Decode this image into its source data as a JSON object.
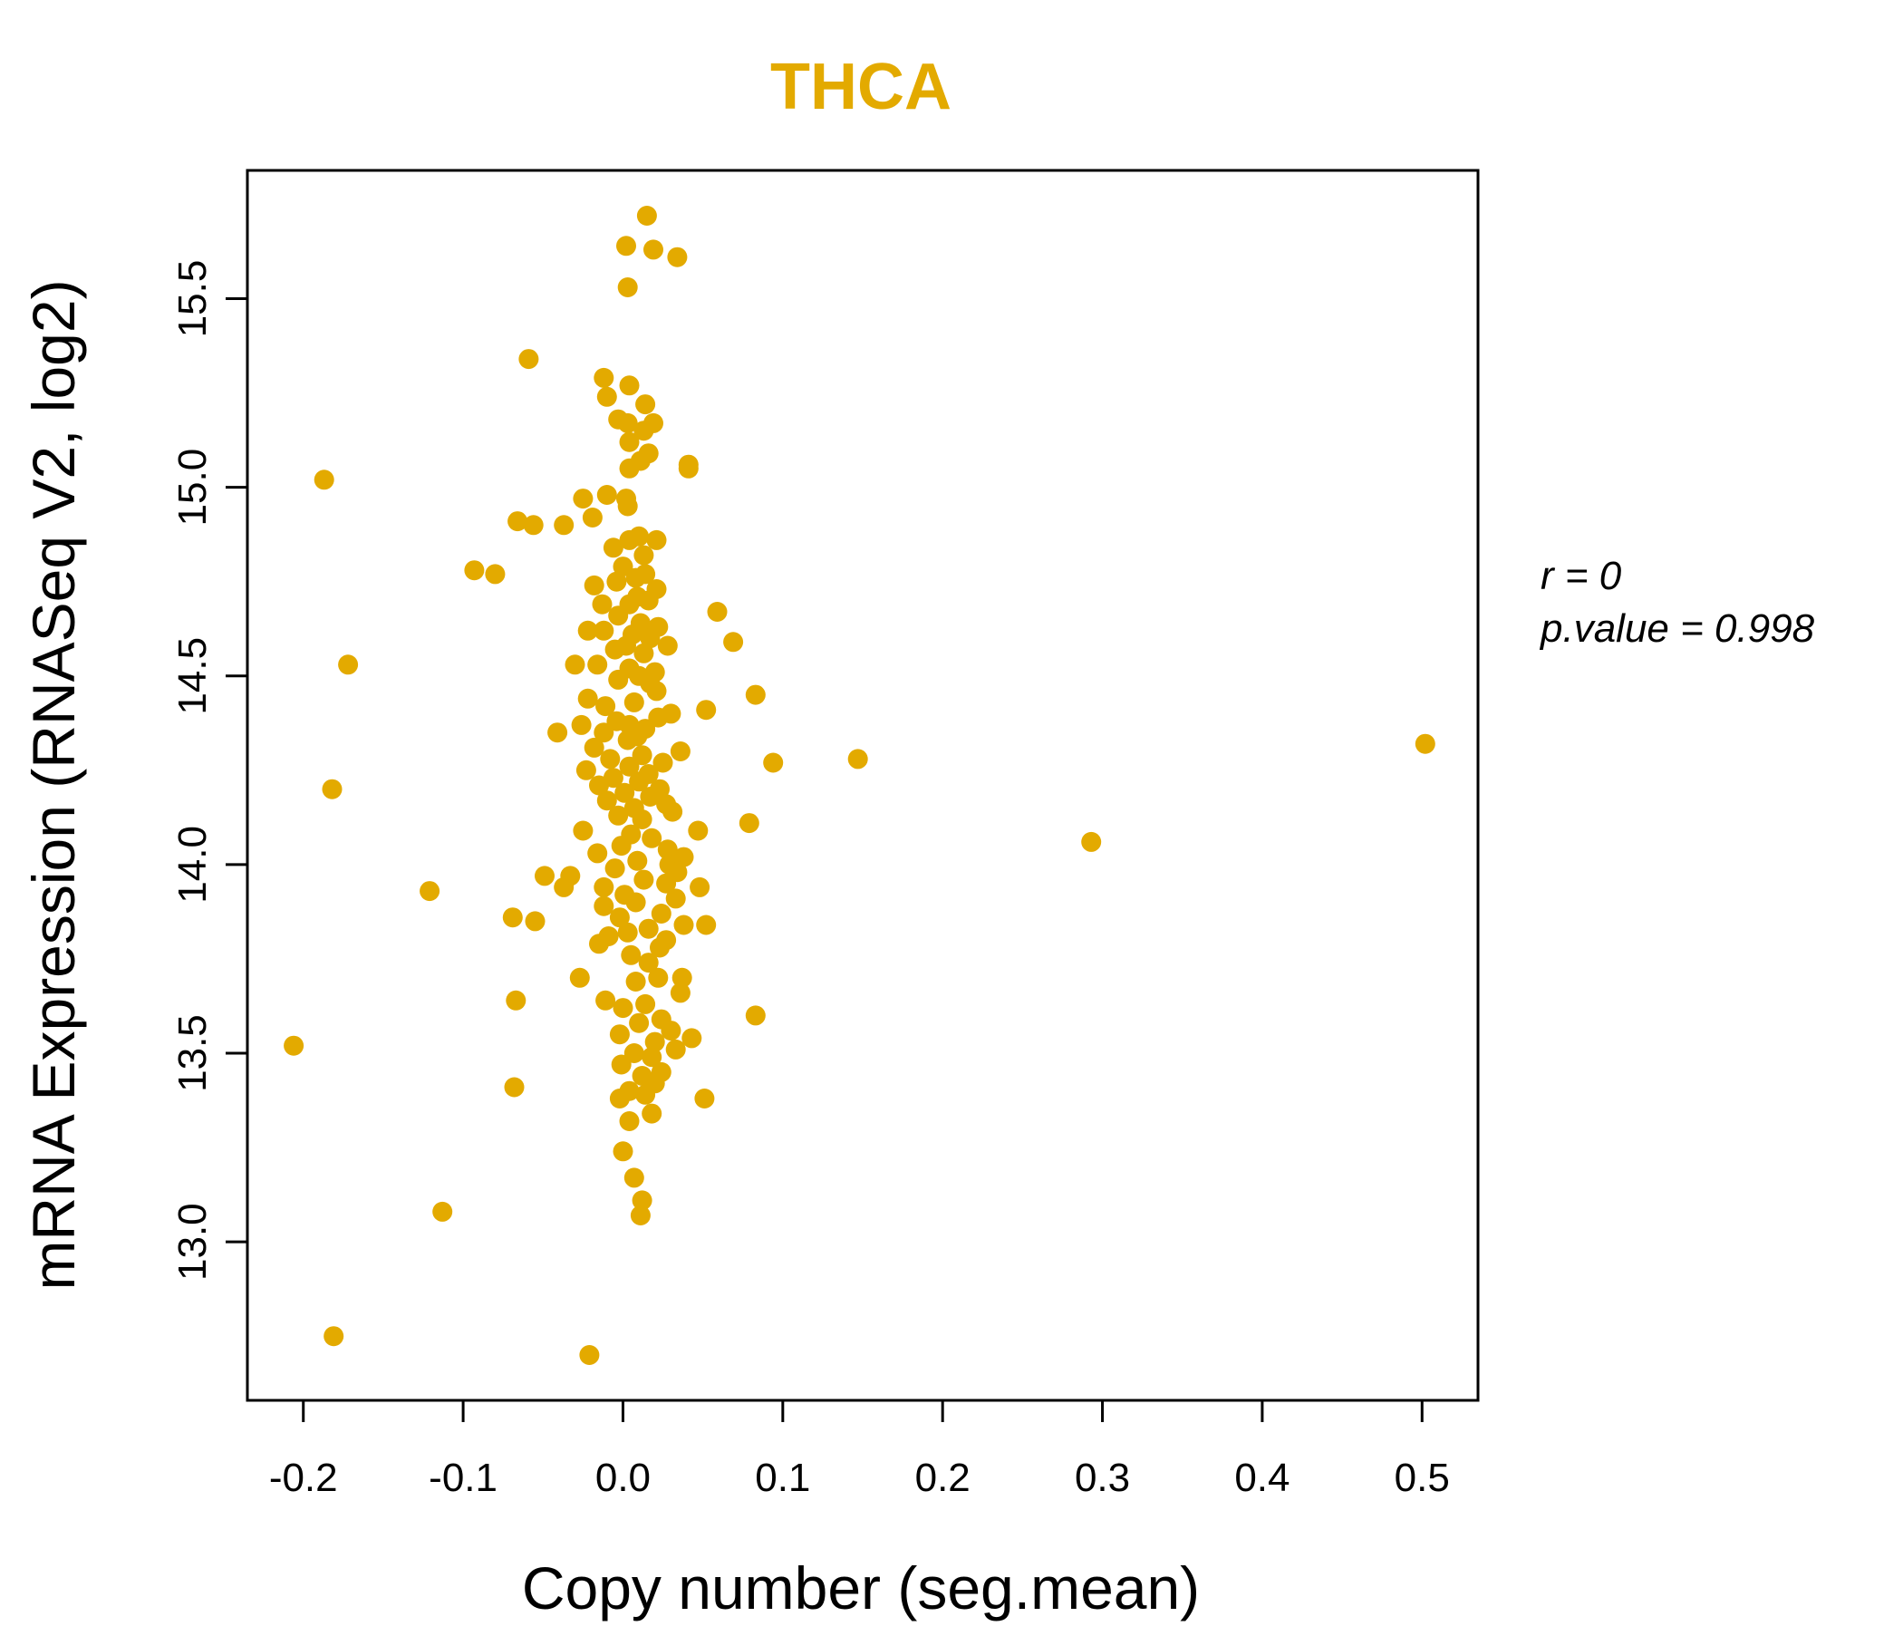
{
  "colors": {
    "accent": "#E3AA00",
    "axis": "#000000",
    "background": "#FFFFFF"
  },
  "stats": {
    "r_label": "r = 0",
    "p_label": "p.value = 0.998"
  },
  "chart_data": {
    "type": "scatter",
    "title": "THCA",
    "xlabel": "Copy number (seg.mean)",
    "ylabel": "mRNA Expression (RNASeq V2, log2)",
    "xlim": [
      -0.235,
      0.535
    ],
    "ylim": [
      12.58,
      15.84
    ],
    "x_ticks": [
      -0.2,
      -0.1,
      0.0,
      0.1,
      0.2,
      0.3,
      0.4,
      0.5
    ],
    "x_tick_labels": [
      "-0.2",
      "-0.1",
      "0.0",
      "0.1",
      "0.2",
      "0.3",
      "0.4",
      "0.5"
    ],
    "y_ticks": [
      13.0,
      13.5,
      14.0,
      14.5,
      15.0,
      15.5
    ],
    "y_tick_labels": [
      "13.0",
      "13.5",
      "14.0",
      "14.5",
      "15.0",
      "15.5"
    ],
    "grid": false,
    "series": [
      {
        "name": "samples",
        "points": [
          [
            0.015,
            15.72
          ],
          [
            0.002,
            15.64
          ],
          [
            0.019,
            15.63
          ],
          [
            0.034,
            15.61
          ],
          [
            0.003,
            15.53
          ],
          [
            -0.059,
            15.34
          ],
          [
            -0.012,
            15.29
          ],
          [
            0.004,
            15.27
          ],
          [
            -0.01,
            15.24
          ],
          [
            0.014,
            15.22
          ],
          [
            -0.003,
            15.18
          ],
          [
            0.003,
            15.17
          ],
          [
            0.019,
            15.17
          ],
          [
            0.013,
            15.15
          ],
          [
            0.004,
            15.12
          ],
          [
            0.016,
            15.09
          ],
          [
            0.011,
            15.07
          ],
          [
            0.004,
            15.05
          ],
          [
            0.041,
            15.06
          ],
          [
            0.041,
            15.05
          ],
          [
            -0.187,
            15.02
          ],
          [
            -0.01,
            14.98
          ],
          [
            0.002,
            14.97
          ],
          [
            -0.025,
            14.97
          ],
          [
            0.003,
            14.95
          ],
          [
            -0.019,
            14.92
          ],
          [
            -0.066,
            14.91
          ],
          [
            -0.056,
            14.9
          ],
          [
            -0.037,
            14.9
          ],
          [
            0.01,
            14.87
          ],
          [
            0.004,
            14.86
          ],
          [
            0.021,
            14.86
          ],
          [
            -0.006,
            14.84
          ],
          [
            0.013,
            14.82
          ],
          [
            -0.093,
            14.78
          ],
          [
            -0.08,
            14.77
          ],
          [
            0.0,
            14.79
          ],
          [
            0.008,
            14.76
          ],
          [
            0.014,
            14.77
          ],
          [
            -0.004,
            14.75
          ],
          [
            -0.018,
            14.74
          ],
          [
            0.021,
            14.73
          ],
          [
            0.009,
            14.71
          ],
          [
            -0.013,
            14.69
          ],
          [
            0.004,
            14.69
          ],
          [
            0.016,
            14.7
          ],
          [
            0.059,
            14.67
          ],
          [
            -0.003,
            14.66
          ],
          [
            0.011,
            14.64
          ],
          [
            0.022,
            14.63
          ],
          [
            -0.022,
            14.62
          ],
          [
            -0.012,
            14.62
          ],
          [
            0.006,
            14.61
          ],
          [
            0.017,
            14.6
          ],
          [
            0.069,
            14.59
          ],
          [
            0.002,
            14.58
          ],
          [
            0.028,
            14.58
          ],
          [
            -0.005,
            14.57
          ],
          [
            0.013,
            14.56
          ],
          [
            -0.03,
            14.53
          ],
          [
            -0.016,
            14.53
          ],
          [
            -0.172,
            14.53
          ],
          [
            0.004,
            14.52
          ],
          [
            0.02,
            14.51
          ],
          [
            0.01,
            14.5
          ],
          [
            -0.003,
            14.49
          ],
          [
            0.017,
            14.48
          ],
          [
            0.021,
            14.46
          ],
          [
            0.083,
            14.45
          ],
          [
            -0.022,
            14.44
          ],
          [
            0.007,
            14.43
          ],
          [
            -0.011,
            14.42
          ],
          [
            0.052,
            14.41
          ],
          [
            0.03,
            14.4
          ],
          [
            0.022,
            14.39
          ],
          [
            -0.004,
            14.38
          ],
          [
            -0.026,
            14.37
          ],
          [
            0.004,
            14.37
          ],
          [
            0.014,
            14.36
          ],
          [
            -0.041,
            14.35
          ],
          [
            -0.012,
            14.35
          ],
          [
            0.009,
            14.34
          ],
          [
            0.003,
            14.33
          ],
          [
            -0.018,
            14.31
          ],
          [
            0.036,
            14.3
          ],
          [
            0.012,
            14.29
          ],
          [
            0.147,
            14.28
          ],
          [
            0.502,
            14.32
          ],
          [
            0.094,
            14.27
          ],
          [
            -0.008,
            14.28
          ],
          [
            0.025,
            14.27
          ],
          [
            0.004,
            14.26
          ],
          [
            -0.023,
            14.25
          ],
          [
            0.016,
            14.24
          ],
          [
            -0.006,
            14.23
          ],
          [
            0.01,
            14.22
          ],
          [
            -0.015,
            14.21
          ],
          [
            0.023,
            14.2
          ],
          [
            -0.182,
            14.2
          ],
          [
            0.001,
            14.19
          ],
          [
            0.017,
            14.18
          ],
          [
            -0.01,
            14.17
          ],
          [
            0.027,
            14.16
          ],
          [
            0.007,
            14.15
          ],
          [
            0.031,
            14.14
          ],
          [
            -0.003,
            14.13
          ],
          [
            0.012,
            14.12
          ],
          [
            0.079,
            14.11
          ],
          [
            0.047,
            14.09
          ],
          [
            -0.025,
            14.09
          ],
          [
            0.005,
            14.08
          ],
          [
            0.018,
            14.07
          ],
          [
            0.293,
            14.06
          ],
          [
            -0.001,
            14.05
          ],
          [
            0.028,
            14.04
          ],
          [
            -0.016,
            14.03
          ],
          [
            0.038,
            14.02
          ],
          [
            0.009,
            14.01
          ],
          [
            0.029,
            14.0
          ],
          [
            -0.005,
            13.99
          ],
          [
            0.034,
            13.98
          ],
          [
            -0.049,
            13.97
          ],
          [
            -0.033,
            13.97
          ],
          [
            0.013,
            13.96
          ],
          [
            0.027,
            13.95
          ],
          [
            -0.012,
            13.94
          ],
          [
            0.048,
            13.94
          ],
          [
            -0.037,
            13.94
          ],
          [
            -0.121,
            13.93
          ],
          [
            0.001,
            13.92
          ],
          [
            0.033,
            13.91
          ],
          [
            0.008,
            13.9
          ],
          [
            -0.012,
            13.89
          ],
          [
            0.024,
            13.87
          ],
          [
            -0.002,
            13.86
          ],
          [
            -0.069,
            13.86
          ],
          [
            -0.055,
            13.85
          ],
          [
            0.038,
            13.84
          ],
          [
            0.052,
            13.84
          ],
          [
            0.016,
            13.83
          ],
          [
            0.003,
            13.82
          ],
          [
            -0.009,
            13.81
          ],
          [
            0.027,
            13.8
          ],
          [
            -0.015,
            13.79
          ],
          [
            0.023,
            13.78
          ],
          [
            0.005,
            13.76
          ],
          [
            0.016,
            13.74
          ],
          [
            -0.027,
            13.7
          ],
          [
            0.037,
            13.7
          ],
          [
            0.022,
            13.7
          ],
          [
            0.008,
            13.69
          ],
          [
            0.036,
            13.66
          ],
          [
            -0.067,
            13.64
          ],
          [
            -0.011,
            13.64
          ],
          [
            0.014,
            13.63
          ],
          [
            0.0,
            13.62
          ],
          [
            0.083,
            13.6
          ],
          [
            0.024,
            13.59
          ],
          [
            0.01,
            13.58
          ],
          [
            0.03,
            13.56
          ],
          [
            -0.002,
            13.55
          ],
          [
            0.043,
            13.54
          ],
          [
            0.02,
            13.53
          ],
          [
            -0.206,
            13.52
          ],
          [
            0.033,
            13.51
          ],
          [
            0.007,
            13.5
          ],
          [
            0.018,
            13.49
          ],
          [
            -0.001,
            13.47
          ],
          [
            0.024,
            13.45
          ],
          [
            0.012,
            13.44
          ],
          [
            0.02,
            13.42
          ],
          [
            -0.068,
            13.41
          ],
          [
            0.004,
            13.4
          ],
          [
            0.014,
            13.39
          ],
          [
            -0.002,
            13.38
          ],
          [
            0.051,
            13.38
          ],
          [
            0.018,
            13.34
          ],
          [
            0.004,
            13.32
          ],
          [
            0.0,
            13.24
          ],
          [
            0.007,
            13.17
          ],
          [
            -0.113,
            13.08
          ],
          [
            0.012,
            13.11
          ],
          [
            0.011,
            13.07
          ],
          [
            -0.181,
            12.75
          ],
          [
            -0.021,
            12.7
          ]
        ]
      }
    ]
  }
}
